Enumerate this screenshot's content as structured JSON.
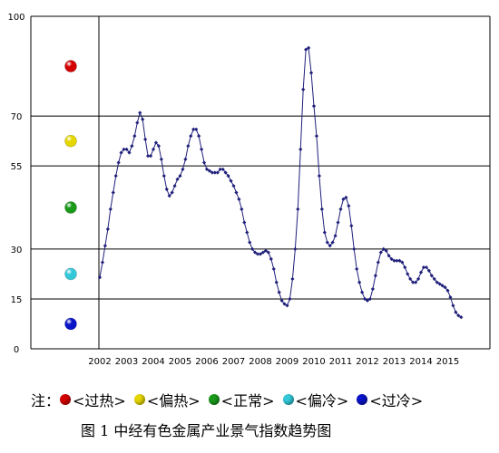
{
  "chart_data": {
    "type": "line",
    "title": "",
    "xlabel": "",
    "ylabel": "",
    "ylim": [
      0,
      100
    ],
    "y_ticks": [
      0,
      15,
      30,
      55,
      70,
      100
    ],
    "x_tick_labels": [
      "2002",
      "2003",
      "2004",
      "2005",
      "2006",
      "2007",
      "2008",
      "2009",
      "2010",
      "2011",
      "2012",
      "2013",
      "2014",
      "2015"
    ],
    "series_color": "#1f1f7a",
    "series": [
      {
        "values": [
          [
            2002.0,
            21.5
          ],
          [
            2002.1,
            26
          ],
          [
            2002.2,
            31
          ],
          [
            2002.3,
            36
          ],
          [
            2002.4,
            42
          ],
          [
            2002.5,
            47
          ],
          [
            2002.6,
            52
          ],
          [
            2002.7,
            56
          ],
          [
            2002.8,
            59
          ],
          [
            2002.9,
            60
          ],
          [
            2003.0,
            60
          ],
          [
            2003.1,
            59
          ],
          [
            2003.2,
            61
          ],
          [
            2003.3,
            64
          ],
          [
            2003.4,
            68
          ],
          [
            2003.5,
            71
          ],
          [
            2003.6,
            69
          ],
          [
            2003.7,
            63
          ],
          [
            2003.8,
            58
          ],
          [
            2003.9,
            58
          ],
          [
            2004.0,
            60
          ],
          [
            2004.1,
            62
          ],
          [
            2004.2,
            61
          ],
          [
            2004.3,
            57
          ],
          [
            2004.4,
            52
          ],
          [
            2004.5,
            48
          ],
          [
            2004.6,
            46
          ],
          [
            2004.7,
            47
          ],
          [
            2004.8,
            49
          ],
          [
            2004.9,
            51
          ],
          [
            2005.0,
            52
          ],
          [
            2005.1,
            54
          ],
          [
            2005.2,
            57
          ],
          [
            2005.3,
            61
          ],
          [
            2005.4,
            64
          ],
          [
            2005.5,
            66
          ],
          [
            2005.6,
            66
          ],
          [
            2005.7,
            64
          ],
          [
            2005.8,
            60
          ],
          [
            2005.9,
            56
          ],
          [
            2006.0,
            54
          ],
          [
            2006.1,
            53.5
          ],
          [
            2006.2,
            53
          ],
          [
            2006.3,
            53
          ],
          [
            2006.4,
            53
          ],
          [
            2006.5,
            54
          ],
          [
            2006.6,
            54
          ],
          [
            2006.7,
            53
          ],
          [
            2006.8,
            52
          ],
          [
            2006.9,
            50.5
          ],
          [
            2007.0,
            49
          ],
          [
            2007.1,
            47
          ],
          [
            2007.2,
            45
          ],
          [
            2007.3,
            42
          ],
          [
            2007.4,
            38
          ],
          [
            2007.5,
            35
          ],
          [
            2007.6,
            32
          ],
          [
            2007.7,
            30
          ],
          [
            2007.8,
            29
          ],
          [
            2007.9,
            28.5
          ],
          [
            2008.0,
            28.5
          ],
          [
            2008.1,
            29
          ],
          [
            2008.2,
            29.5
          ],
          [
            2008.3,
            29
          ],
          [
            2008.4,
            27
          ],
          [
            2008.5,
            24
          ],
          [
            2008.6,
            20
          ],
          [
            2008.7,
            17
          ],
          [
            2008.8,
            14.5
          ],
          [
            2008.9,
            13.5
          ],
          [
            2009.0,
            13
          ],
          [
            2009.1,
            15
          ],
          [
            2009.2,
            21
          ],
          [
            2009.3,
            30
          ],
          [
            2009.4,
            42
          ],
          [
            2009.5,
            60
          ],
          [
            2009.6,
            78
          ],
          [
            2009.7,
            90
          ],
          [
            2009.8,
            90.5
          ],
          [
            2009.9,
            83
          ],
          [
            2010.0,
            73
          ],
          [
            2010.1,
            64
          ],
          [
            2010.2,
            52
          ],
          [
            2010.3,
            42
          ],
          [
            2010.4,
            35
          ],
          [
            2010.5,
            32
          ],
          [
            2010.6,
            31
          ],
          [
            2010.7,
            32
          ],
          [
            2010.8,
            34
          ],
          [
            2010.9,
            38
          ],
          [
            2011.0,
            42
          ],
          [
            2011.1,
            45
          ],
          [
            2011.2,
            45.5
          ],
          [
            2011.3,
            43
          ],
          [
            2011.4,
            37
          ],
          [
            2011.5,
            30
          ],
          [
            2011.6,
            24
          ],
          [
            2011.7,
            20
          ],
          [
            2011.8,
            17
          ],
          [
            2011.9,
            15
          ],
          [
            2012.0,
            14.5
          ],
          [
            2012.1,
            15
          ],
          [
            2012.2,
            18
          ],
          [
            2012.3,
            22
          ],
          [
            2012.4,
            26
          ],
          [
            2012.5,
            29
          ],
          [
            2012.6,
            30
          ],
          [
            2012.7,
            29.5
          ],
          [
            2012.8,
            28
          ],
          [
            2012.9,
            27
          ],
          [
            2013.0,
            26.5
          ],
          [
            2013.1,
            26.5
          ],
          [
            2013.2,
            26.5
          ],
          [
            2013.3,
            26
          ],
          [
            2013.4,
            24.5
          ],
          [
            2013.5,
            22.5
          ],
          [
            2013.6,
            21
          ],
          [
            2013.7,
            20
          ],
          [
            2013.8,
            20
          ],
          [
            2013.9,
            21
          ],
          [
            2014.0,
            23
          ],
          [
            2014.1,
            24.5
          ],
          [
            2014.2,
            24.5
          ],
          [
            2014.3,
            23.5
          ],
          [
            2014.4,
            22
          ],
          [
            2014.5,
            21
          ],
          [
            2014.6,
            20
          ],
          [
            2014.7,
            19.5
          ],
          [
            2014.8,
            19
          ],
          [
            2014.9,
            18.5
          ],
          [
            2015.0,
            17.5
          ],
          [
            2015.1,
            15.5
          ],
          [
            2015.2,
            13
          ],
          [
            2015.3,
            11
          ],
          [
            2015.4,
            10
          ],
          [
            2015.5,
            9.5
          ]
        ]
      }
    ]
  },
  "zone_markers": [
    {
      "name": "过热",
      "color": "#d40000",
      "value": 85
    },
    {
      "name": "偏热",
      "color": "#e6d600",
      "value": 62.5
    },
    {
      "name": "正常",
      "color": "#1a9a1a",
      "value": 42.5
    },
    {
      "name": "偏冷",
      "color": "#33c8d8",
      "value": 22.5
    },
    {
      "name": "过冷",
      "color": "#0a14c8",
      "value": 7.5
    }
  ],
  "legend": {
    "prefix": "注：",
    "items": [
      {
        "label": "<过热>",
        "color": "#d40000"
      },
      {
        "label": "<偏热>",
        "color": "#e6d600"
      },
      {
        "label": "<正常>",
        "color": "#1a9a1a"
      },
      {
        "label": "<偏冷>",
        "color": "#33c8d8"
      },
      {
        "label": "<过冷>",
        "color": "#0a14c8"
      }
    ]
  },
  "caption": "图 1   中经有色金属产业景气指数趋势图"
}
